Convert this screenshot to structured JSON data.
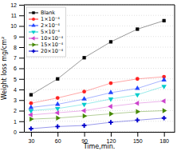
{
  "chart_data": {
    "type": "line",
    "x": [
      30,
      60,
      90,
      120,
      150,
      180
    ],
    "series": [
      {
        "name": "Blank",
        "color": "black",
        "marker": "square",
        "values": [
          3.5,
          5.0,
          7.0,
          8.5,
          9.7,
          10.5
        ]
      },
      {
        "name": "1×10⁻⁴",
        "color": "#ff2222",
        "marker": "circle",
        "values": [
          2.7,
          3.2,
          3.8,
          4.6,
          5.0,
          5.2
        ]
      },
      {
        "name": "2×10⁻⁴",
        "color": "#2244ff",
        "marker": "triangle-up",
        "values": [
          2.3,
          2.6,
          3.1,
          3.7,
          4.1,
          4.9
        ]
      },
      {
        "name": "5×10⁻⁴",
        "color": "#00cccc",
        "marker": "triangle-down",
        "values": [
          2.0,
          2.2,
          2.6,
          3.1,
          3.5,
          4.3
        ]
      },
      {
        "name": "10×10⁻⁴",
        "color": "#cc44cc",
        "marker": "triangle-left",
        "values": [
          1.6,
          1.8,
          2.0,
          2.4,
          2.7,
          2.9
        ]
      },
      {
        "name": "15×10⁻⁴",
        "color": "#448800",
        "marker": "triangle-right",
        "values": [
          1.2,
          1.3,
          1.5,
          1.7,
          1.9,
          2.0
        ]
      },
      {
        "name": "20×10⁻⁴",
        "color": "#0000cc",
        "marker": "plus",
        "values": [
          0.3,
          0.5,
          0.6,
          0.9,
          1.1,
          1.3
        ]
      }
    ],
    "xlabel": "Time,min.",
    "ylabel": "Weight loss mg/cm²",
    "xlim": [
      22,
      192
    ],
    "ylim": [
      0,
      12
    ],
    "xticks": [
      30,
      60,
      90,
      120,
      150,
      180
    ],
    "yticks": [
      0,
      1,
      2,
      3,
      4,
      5,
      6,
      7,
      8,
      9,
      10,
      11,
      12
    ],
    "grid": true,
    "legend": "upper left"
  }
}
